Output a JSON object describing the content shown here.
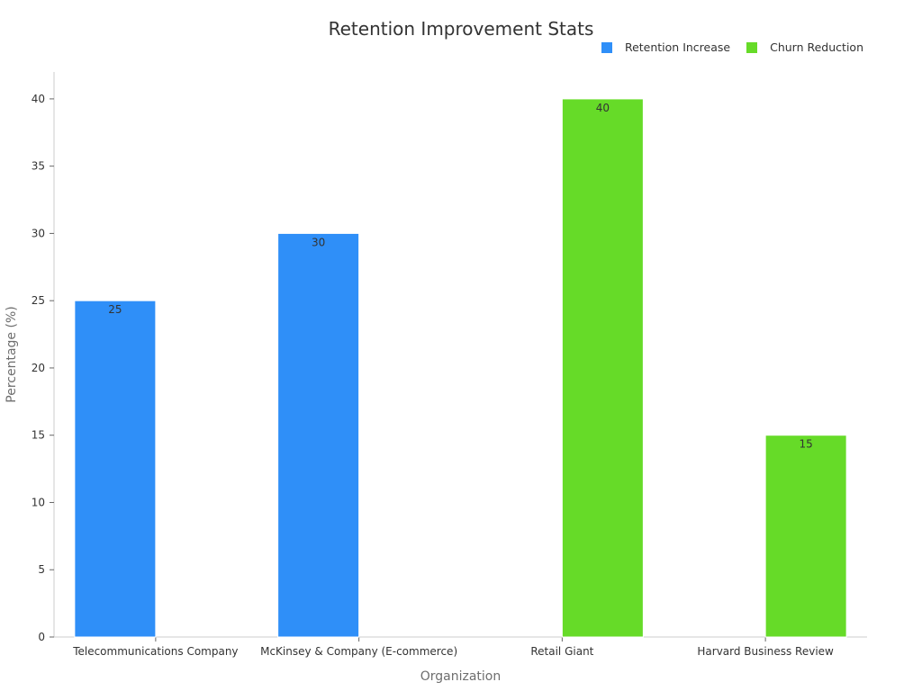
{
  "chart_data": {
    "type": "bar",
    "title": "Retention Improvement Stats",
    "xlabel": "Organization",
    "ylabel": "Percentage (%)",
    "ylim": [
      0,
      42
    ],
    "yticks": [
      0,
      5,
      10,
      15,
      20,
      25,
      30,
      35,
      40
    ],
    "categories": [
      "Telecommunications Company",
      "McKinsey & Company (E-commerce)",
      "Retail Giant",
      "Harvard Business Review"
    ],
    "series": [
      {
        "name": "Retention Increase",
        "color": "#2f8ff8",
        "values": [
          25,
          30,
          null,
          null
        ]
      },
      {
        "name": "Churn Reduction",
        "color": "#66db28",
        "values": [
          null,
          null,
          40,
          15
        ]
      }
    ],
    "legend_position": "top-right",
    "grid": false,
    "data_labels": true
  }
}
